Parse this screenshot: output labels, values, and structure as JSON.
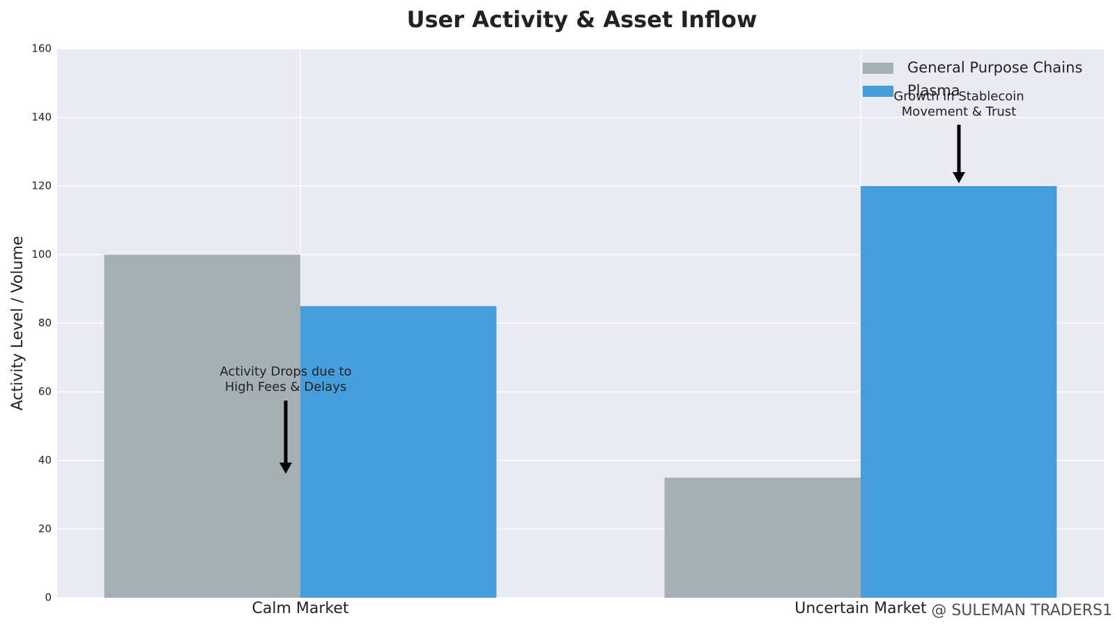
{
  "chart_data": {
    "type": "bar",
    "title": "User Activity & Asset Inflow",
    "y_label": "Activity Level / Volume",
    "categories": [
      "Calm Market",
      "Uncertain Market"
    ],
    "series": [
      {
        "name": "General Purpose Chains",
        "color": "#a5b0b5",
        "values": [
          100,
          35
        ]
      },
      {
        "name": "Plasma",
        "color": "#469fdc",
        "values": [
          85,
          120
        ]
      }
    ],
    "ylim": [
      0,
      160
    ],
    "yticks": [
      0,
      20,
      40,
      60,
      80,
      100,
      120,
      140,
      160
    ],
    "grid": true,
    "legend": "upper right",
    "annotations": [
      {
        "lines": [
          "Activity Drops due to",
          "High Fees & Delays"
        ]
      },
      {
        "lines": [
          "Growth in Stablecoin",
          "Movement & Trust"
        ]
      }
    ],
    "watermark": "@ SULEMAN TRADERS1"
  }
}
